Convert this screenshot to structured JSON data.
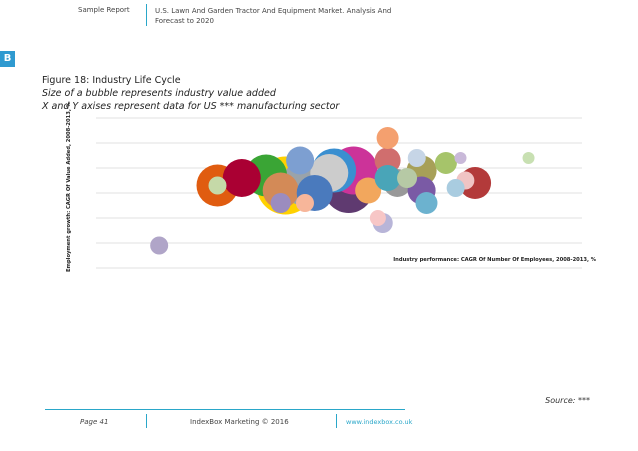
{
  "header": {
    "left": "Sample Report",
    "right": "U.S. Lawn And Garden Tractor And Equipment Market. Analysis And Forecast to 2020"
  },
  "logo": {
    "letter": "B",
    "color": "#2f9ad0"
  },
  "figure": {
    "title": "Figure 18: Industry Life Cycle",
    "subtitle": "Size of a bubble represents industry value added",
    "subtitle2": "X and Y axises represent data for US *** manufacturing sector"
  },
  "chart_data": {
    "type": "scatter",
    "xlabel": "Industry performance: CAGR Of Number Of Employees, 2008-2013, %",
    "ylabel": "Employment growth: CAGR Of Value Added, 2008-2013, %",
    "grid": true,
    "gridlines": 7,
    "xlim": [
      0,
      1
    ],
    "ylim": [
      0,
      6
    ],
    "points": [
      {
        "x": 0.13,
        "y": 0.9,
        "size": 9,
        "color": "#b0a5c8"
      },
      {
        "x": 0.25,
        "y": 3.3,
        "size": 21,
        "color": "#e05c10"
      },
      {
        "x": 0.25,
        "y": 3.3,
        "size": 9,
        "color": "#c5d9a8"
      },
      {
        "x": 0.35,
        "y": 3.7,
        "size": 21,
        "color": "#3aa535"
      },
      {
        "x": 0.3,
        "y": 3.6,
        "size": 19,
        "color": "#aa0033"
      },
      {
        "x": 0.39,
        "y": 3.3,
        "size": 29,
        "color": "#ffd100"
      },
      {
        "x": 0.38,
        "y": 3.1,
        "size": 18,
        "color": "#d38a57"
      },
      {
        "x": 0.38,
        "y": 2.6,
        "size": 10,
        "color": "#9b8cbf"
      },
      {
        "x": 0.42,
        "y": 4.3,
        "size": 14,
        "color": "#7d9fd1"
      },
      {
        "x": 0.48,
        "y": 3.8,
        "size": 19,
        "color": "#cccccc"
      },
      {
        "x": 0.43,
        "y": 3.4,
        "size": 23,
        "color": "#9aa3aa"
      },
      {
        "x": 0.45,
        "y": 3.0,
        "size": 18,
        "color": "#4a7abd"
      },
      {
        "x": 0.43,
        "y": 2.6,
        "size": 9,
        "color": "#f7b69a"
      },
      {
        "x": 0.49,
        "y": 3.9,
        "size": 22,
        "color": "#3a8fd0"
      },
      {
        "x": 0.52,
        "y": 3.2,
        "size": 25,
        "color": "#5f3a70"
      },
      {
        "x": 0.53,
        "y": 3.9,
        "size": 24,
        "color": "#cc3399"
      },
      {
        "x": 0.56,
        "y": 3.1,
        "size": 13,
        "color": "#f2a75d"
      },
      {
        "x": 0.6,
        "y": 5.2,
        "size": 11,
        "color": "#f4a06f"
      },
      {
        "x": 0.6,
        "y": 4.3,
        "size": 13,
        "color": "#d06e6e"
      },
      {
        "x": 0.6,
        "y": 3.6,
        "size": 13,
        "color": "#49a5b8"
      },
      {
        "x": 0.62,
        "y": 3.4,
        "size": 14,
        "color": "#999999"
      },
      {
        "x": 0.64,
        "y": 3.6,
        "size": 10,
        "color": "#b6c9a5"
      },
      {
        "x": 0.67,
        "y": 3.9,
        "size": 15,
        "color": "#a7a058"
      },
      {
        "x": 0.66,
        "y": 4.4,
        "size": 9,
        "color": "#c6d5e6"
      },
      {
        "x": 0.67,
        "y": 3.1,
        "size": 14,
        "color": "#7a5aa5"
      },
      {
        "x": 0.59,
        "y": 1.8,
        "size": 10,
        "color": "#b8b5d8"
      },
      {
        "x": 0.58,
        "y": 2.0,
        "size": 8,
        "color": "#f7c6c6"
      },
      {
        "x": 0.68,
        "y": 2.6,
        "size": 11,
        "color": "#6cb2cf"
      },
      {
        "x": 0.72,
        "y": 4.2,
        "size": 11,
        "color": "#a6c46a"
      },
      {
        "x": 0.75,
        "y": 4.4,
        "size": 6,
        "color": "#c9b9d9"
      },
      {
        "x": 0.78,
        "y": 3.4,
        "size": 16,
        "color": "#b33a3a"
      },
      {
        "x": 0.76,
        "y": 3.5,
        "size": 9,
        "color": "#f0c4c4"
      },
      {
        "x": 0.74,
        "y": 3.2,
        "size": 9,
        "color": "#a9cce0"
      },
      {
        "x": 0.89,
        "y": 4.4,
        "size": 6,
        "color": "#c8e0b2"
      }
    ]
  },
  "source": "Source: ***",
  "footer": {
    "page": "Page 41",
    "copyright": "IndexBox Marketing © 2016",
    "url": "www.indexbox.co.uk"
  }
}
